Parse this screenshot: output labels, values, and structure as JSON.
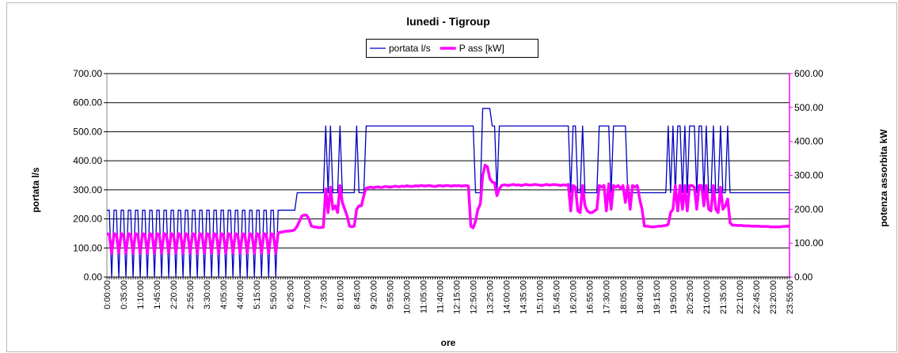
{
  "chart_data": {
    "type": "line",
    "title": "lunedi - Tigroup",
    "xlabel": "ore",
    "ylabel": "portata l/s",
    "y2label": "potenza assorbita kW",
    "legend": "top",
    "grid": true,
    "categories": [
      "0:00:00",
      null,
      null,
      null,
      null,
      null,
      null,
      "0:35:00",
      null,
      null,
      null,
      null,
      null,
      null,
      "1:10:00",
      null,
      null,
      null,
      null,
      null,
      null,
      "1:45:00",
      null,
      null,
      null,
      null,
      null,
      null,
      "2:20:00",
      null,
      null,
      null,
      null,
      null,
      null,
      "2:55:00",
      null,
      null,
      null,
      null,
      null,
      null,
      "3:30:00",
      null,
      null,
      null,
      null,
      null,
      null,
      "4:05:00",
      null,
      null,
      null,
      null,
      null,
      null,
      "4:40:00",
      null,
      null,
      null,
      null,
      null,
      null,
      "5:15:00",
      null,
      null,
      null,
      null,
      null,
      null,
      "5:50:00",
      null,
      null,
      null,
      null,
      null,
      null,
      "6:25:00",
      null,
      null,
      null,
      null,
      null,
      null,
      "7:00:00",
      null,
      null,
      null,
      null,
      null,
      null,
      "7:35:00",
      null,
      null,
      null,
      null,
      null,
      null,
      "8:10:00",
      null,
      null,
      null,
      null,
      null,
      null,
      "8:45:00",
      null,
      null,
      null,
      null,
      null,
      null,
      "9:20:00",
      null,
      null,
      null,
      null,
      null,
      null,
      "9:55:00",
      null,
      null,
      null,
      null,
      null,
      null,
      "10:30:00",
      null,
      null,
      null,
      null,
      null,
      null,
      "11:05:00",
      null,
      null,
      null,
      null,
      null,
      null,
      "11:40:00",
      null,
      null,
      null,
      null,
      null,
      null,
      "12:15:00",
      null,
      null,
      null,
      null,
      null,
      null,
      "12:50:00",
      null,
      null,
      null,
      null,
      null,
      null,
      "13:25:00",
      null,
      null,
      null,
      null,
      null,
      null,
      "14:00:00",
      null,
      null,
      null,
      null,
      null,
      null,
      "14:35:00",
      null,
      null,
      null,
      null,
      null,
      null,
      "15:10:00",
      null,
      null,
      null,
      null,
      null,
      null,
      "15:45:00",
      null,
      null,
      null,
      null,
      null,
      null,
      "16:20:00",
      null,
      null,
      null,
      null,
      null,
      null,
      "16:55:00",
      null,
      null,
      null,
      null,
      null,
      null,
      "17:30:00",
      null,
      null,
      null,
      null,
      null,
      null,
      "18:05:00",
      null,
      null,
      null,
      null,
      null,
      null,
      "18:40:00",
      null,
      null,
      null,
      null,
      null,
      null,
      "19:15:00",
      null,
      null,
      null,
      null,
      null,
      null,
      "19:50:00",
      null,
      null,
      null,
      null,
      null,
      null,
      "20:25:00",
      null,
      null,
      null,
      null,
      null,
      null,
      "21:00:00",
      null,
      null,
      null,
      null,
      null,
      null,
      "21:35:00",
      null,
      null,
      null,
      null,
      null,
      null,
      "22:10:00",
      null,
      null,
      null,
      null,
      null,
      null,
      "22:45:00",
      null,
      null,
      null,
      null,
      null,
      null,
      "23:20:00",
      null,
      null,
      null,
      null,
      null,
      null,
      "23:55:00"
    ],
    "series": [
      {
        "name": "portata l/s",
        "color": "#0000c0",
        "width": 1.3,
        "values": [
          230,
          230,
          0,
          230,
          230,
          0,
          230,
          230,
          0,
          230,
          230,
          0,
          230,
          230,
          0,
          230,
          230,
          0,
          230,
          230,
          0,
          230,
          230,
          0,
          230,
          230,
          0,
          230,
          230,
          0,
          230,
          230,
          0,
          230,
          230,
          0,
          230,
          230,
          0,
          230,
          230,
          0,
          230,
          230,
          0,
          230,
          230,
          0,
          230,
          230,
          0,
          230,
          230,
          0,
          230,
          230,
          0,
          230,
          230,
          0,
          230,
          230,
          0,
          230,
          230,
          0,
          230,
          230,
          0,
          230,
          230,
          0,
          230,
          230,
          230,
          230,
          230,
          230,
          230,
          230,
          290,
          290,
          290,
          290,
          290,
          290,
          290,
          290,
          290,
          290,
          290,
          290,
          520,
          290,
          520,
          290,
          290,
          290,
          520,
          290,
          290,
          290,
          290,
          290,
          290,
          520,
          290,
          290,
          290,
          520,
          520,
          520,
          520,
          520,
          520,
          520,
          520,
          520,
          520,
          520,
          520,
          520,
          520,
          520,
          520,
          520,
          520,
          520,
          520,
          520,
          520,
          520,
          520,
          520,
          520,
          520,
          520,
          520,
          520,
          520,
          520,
          520,
          520,
          520,
          520,
          520,
          520,
          520,
          520,
          520,
          520,
          520,
          520,
          520,
          520,
          290,
          290,
          290,
          580,
          580,
          580,
          580,
          520,
          520,
          290,
          520,
          520,
          520,
          520,
          520,
          520,
          520,
          520,
          520,
          520,
          520,
          520,
          520,
          520,
          520,
          520,
          520,
          520,
          520,
          520,
          520,
          520,
          520,
          520,
          520,
          520,
          520,
          520,
          520,
          520,
          290,
          520,
          520,
          290,
          290,
          520,
          290,
          290,
          290,
          290,
          290,
          290,
          520,
          520,
          520,
          520,
          520,
          290,
          520,
          520,
          520,
          520,
          520,
          520,
          290,
          290,
          290,
          290,
          290,
          290,
          290,
          290,
          290,
          290,
          290,
          290,
          290,
          290,
          290,
          290,
          290,
          520,
          290,
          520,
          290,
          520,
          520,
          290,
          520,
          290,
          520,
          520,
          520,
          290,
          520,
          520,
          290,
          520,
          290,
          290,
          520,
          290,
          290,
          520,
          290,
          290,
          520,
          290,
          290,
          290,
          290,
          290,
          290,
          290,
          290,
          290,
          290,
          290,
          290,
          290,
          290,
          290,
          290,
          290,
          290,
          290,
          290,
          290,
          290,
          290,
          290,
          290,
          290
        ]
      },
      {
        "name": "P ass [kW]",
        "color": "#ff00ff",
        "width": 3.5,
        "axis": "y2",
        "values": [
          128,
          125,
          70,
          128,
          125,
          70,
          128,
          125,
          70,
          128,
          125,
          70,
          128,
          125,
          70,
          128,
          125,
          70,
          128,
          125,
          70,
          128,
          125,
          70,
          128,
          125,
          70,
          128,
          125,
          70,
          128,
          125,
          70,
          128,
          125,
          70,
          128,
          125,
          70,
          128,
          125,
          70,
          128,
          125,
          70,
          128,
          125,
          70,
          128,
          125,
          70,
          128,
          125,
          70,
          128,
          125,
          70,
          128,
          125,
          70,
          128,
          125,
          70,
          128,
          125,
          70,
          128,
          125,
          70,
          128,
          125,
          70,
          130,
          132,
          133,
          135,
          135,
          136,
          137,
          140,
          150,
          165,
          180,
          183,
          182,
          170,
          150,
          148,
          147,
          146,
          146,
          147,
          260,
          190,
          265,
          200,
          210,
          190,
          270,
          220,
          200,
          180,
          150,
          148,
          150,
          200,
          210,
          210,
          240,
          262,
          264,
          265,
          263,
          265,
          266,
          264,
          265,
          267,
          266,
          265,
          266,
          268,
          267,
          266,
          268,
          267,
          269,
          268,
          267,
          268,
          269,
          268,
          270,
          269,
          268,
          270,
          269,
          268,
          267,
          269,
          270,
          268,
          269,
          270,
          269,
          268,
          270,
          269,
          270,
          268,
          269,
          270,
          268,
          150,
          145,
          165,
          200,
          215,
          300,
          330,
          325,
          290,
          280,
          278,
          240,
          260,
          270,
          272,
          271,
          270,
          272,
          273,
          271,
          272,
          270,
          271,
          273,
          272,
          271,
          272,
          273,
          272,
          271,
          270,
          272,
          273,
          271,
          272,
          273,
          272,
          271,
          270,
          272,
          271,
          273,
          195,
          270,
          265,
          195,
          190,
          270,
          210,
          195,
          190,
          190,
          195,
          200,
          270,
          265,
          270,
          195,
          275,
          200,
          270,
          265,
          270,
          260,
          270,
          220,
          270,
          200,
          270,
          265,
          270,
          230,
          200,
          150,
          150,
          149,
          148,
          148,
          149,
          150,
          150,
          151,
          152,
          155,
          190,
          200,
          270,
          195,
          270,
          200,
          270,
          195,
          270,
          270,
          265,
          200,
          270,
          270,
          210,
          270,
          200,
          195,
          270,
          200,
          190,
          265,
          200,
          210,
          230,
          160,
          153,
          153,
          152,
          152,
          152,
          151,
          151,
          151,
          150,
          150,
          150,
          150,
          149,
          149,
          149,
          149,
          148,
          148,
          148,
          148,
          148,
          149,
          149,
          150,
          150
        ]
      }
    ],
    "ylim": [
      0,
      700
    ],
    "yticks": [
      {
        "value": 0,
        "label": "0.00"
      },
      {
        "value": 100,
        "label": "100.00"
      },
      {
        "value": 200,
        "label": "200.00"
      },
      {
        "value": 300,
        "label": "300.00"
      },
      {
        "value": 400,
        "label": "400.00"
      },
      {
        "value": 500,
        "label": "500.00"
      },
      {
        "value": 600,
        "label": "600.00"
      },
      {
        "value": 700,
        "label": "700.00"
      }
    ],
    "y2lim": [
      0,
      600
    ],
    "y2ticks": [
      {
        "value": 0,
        "label": "0.00"
      },
      {
        "value": 100,
        "label": "100.00"
      },
      {
        "value": 200,
        "label": "200.00"
      },
      {
        "value": 300,
        "label": "300.00"
      },
      {
        "value": 400,
        "label": "400.00"
      },
      {
        "value": 500,
        "label": "500.00"
      },
      {
        "value": 600,
        "label": "600.00"
      }
    ]
  }
}
